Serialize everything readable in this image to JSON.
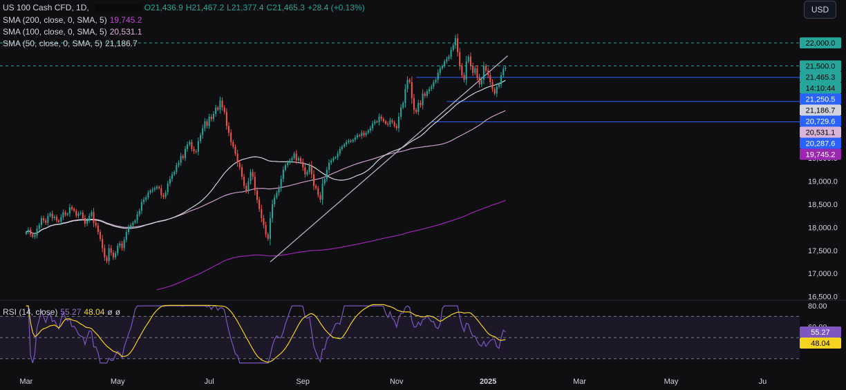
{
  "header": {
    "symbol": "US 100 Cash CFD, 1D,",
    "open": "O21,436.9",
    "high": "H21,467.2",
    "low": "L21,377.4",
    "close": "C21,465.3",
    "change": "+28.4 (+0.13%)"
  },
  "indicators": [
    {
      "label": "SMA (200, close, 0, SMA, 5)",
      "value": "19,745.2",
      "color": "#9c27b0"
    },
    {
      "label": "SMA (100, close, 0, SMA, 5)",
      "value": "20,531.1",
      "color": "#c99ec9"
    },
    {
      "label": "SMA (50, close, 0, SMA, 5)",
      "value": "21,186.7",
      "color": "#d1d4dc"
    }
  ],
  "currency_button": "USD",
  "rsi_legend": {
    "label": "RSI (14, close)",
    "rsi": "55.27",
    "ma": "48.04",
    "extra1": "ø",
    "extra2": "ø"
  },
  "colors": {
    "background": "#0f0f12",
    "up": "#26a69a",
    "down": "#ef5350",
    "sma200": "#9c27b0",
    "sma100": "#c99ec9",
    "sma50": "#d1d4dc",
    "level_line": "#2962ff",
    "rsi_line": "#7e57c2",
    "rsi_ma": "#f5d41f"
  },
  "price_labels": [
    {
      "text": "22,000.0",
      "bg": "#26a69a",
      "fg": "#000000"
    },
    {
      "text": "21,500.0",
      "bg": "#26a69a",
      "fg": "#000000"
    },
    {
      "text": "21,465.3",
      "bg": "#26a69a",
      "fg": "#000000"
    },
    {
      "text": "14:10:44",
      "bg": "#26a69a",
      "fg": "#000000"
    },
    {
      "text": "21,250.5",
      "bg": "#2962ff",
      "fg": "#ffffff"
    },
    {
      "text": "21,186.7",
      "bg": "#d1d4dc",
      "fg": "#000000"
    },
    {
      "text": "20,729.6",
      "bg": "#2962ff",
      "fg": "#ffffff"
    },
    {
      "text": "20,531.1",
      "bg": "#d8b4d8",
      "fg": "#000000"
    },
    {
      "text": "20,287.6",
      "bg": "#2962ff",
      "fg": "#ffffff"
    },
    {
      "text": "19,745.2",
      "bg": "#9c27b0",
      "fg": "#ffffff"
    }
  ],
  "rsi_labels": [
    {
      "text": "55.27",
      "bg": "#7e57c2",
      "fg": "#ffffff"
    },
    {
      "text": "48.04",
      "bg": "#f5d41f",
      "fg": "#000000"
    }
  ],
  "chart_data": {
    "type": "candlestick",
    "y_ticks": [
      16500,
      17000,
      17500,
      18000,
      18500,
      19000,
      19500
    ],
    "y_tick_labels": [
      "16,500.0",
      "17,000.0",
      "17,500.0",
      "18,000.0",
      "18,500.0",
      "19,000.0",
      "19,500.0"
    ],
    "ylim": [
      16450,
      22480
    ],
    "x_month_labels": [
      "Mar",
      "May",
      "Jul",
      "Sep",
      "Nov",
      "2025",
      "Mar",
      "May",
      "Ju"
    ],
    "x_month_label_index": [
      0,
      42,
      84,
      127,
      170,
      212,
      254,
      296,
      338
    ],
    "x_index_range": [
      -12,
      355
    ],
    "horizontal_levels": [
      {
        "value": 22000,
        "style": "dashed",
        "color": "#26a69a"
      },
      {
        "value": 21500,
        "style": "dashed",
        "color": "#26a69a"
      },
      {
        "value": 21250.5,
        "style": "solid",
        "color": "#2962ff",
        "from_index": 179
      },
      {
        "value": 20729.6,
        "style": "solid",
        "color": "#2962ff",
        "from_index": 193
      },
      {
        "value": 20287.6,
        "style": "solid",
        "color": "#2962ff",
        "from_index": 186
      }
    ],
    "trendlines": [
      {
        "from": [
          112,
          17250
        ],
        "to": [
          221,
          21720
        ],
        "color": "#b0b3bb"
      }
    ],
    "closes": [
      17900,
      17950,
      17850,
      17800,
      17830,
      17970,
      18050,
      18200,
      18150,
      18100,
      18250,
      18300,
      18200,
      18230,
      18150,
      18120,
      18220,
      18330,
      18270,
      18300,
      18440,
      18400,
      18360,
      18250,
      18300,
      18320,
      18200,
      18080,
      18150,
      18250,
      18330,
      18100,
      18040,
      17900,
      17750,
      17550,
      17350,
      17270,
      17550,
      17450,
      17350,
      17440,
      17600,
      17650,
      17550,
      17730,
      17900,
      18000,
      18050,
      18100,
      18150,
      18280,
      18360,
      18550,
      18600,
      18650,
      18750,
      18800,
      18820,
      18850,
      18880,
      18850,
      18700,
      18660,
      18760,
      18950,
      19050,
      19150,
      19200,
      19350,
      19400,
      19550,
      19500,
      19700,
      19800,
      19850,
      19700,
      19650,
      19640,
      19870,
      20000,
      20150,
      20300,
      20200,
      20400,
      20350,
      20460,
      20600,
      20550,
      20750,
      20600,
      20500,
      20200,
      20050,
      19850,
      19750,
      19600,
      19400,
      19300,
      19100,
      18900,
      18800,
      19000,
      19200,
      19100,
      18800,
      18600,
      18400,
      18200,
      18050,
      17850,
      17750,
      18200,
      18500,
      18650,
      18750,
      18850,
      19050,
      19250,
      19350,
      19400,
      19450,
      19500,
      19600,
      19450,
      19500,
      19420,
      19300,
      19150,
      19200,
      19350,
      19150,
      18900,
      18850,
      18700,
      18600,
      18950,
      19050,
      19250,
      19400,
      19450,
      19500,
      19520,
      19600,
      19700,
      19750,
      19800,
      19850,
      19880,
      19860,
      19900,
      19950,
      20000,
      19980,
      20050,
      20000,
      20050,
      20100,
      20150,
      20250,
      20300,
      20280,
      20400,
      20350,
      20300,
      20250,
      20230,
      20320,
      20280,
      20200,
      20150,
      20400,
      20600,
      20700,
      21000,
      21200,
      21150,
      20800,
      20550,
      20500,
      20700,
      20650,
      20900,
      20850,
      20950,
      21000,
      21050,
      21150,
      21200,
      21350,
      21450,
      21500,
      21600,
      21650,
      21700,
      21850,
      21950,
      22100,
      21800,
      21500,
      21300,
      21200,
      21600,
      21700,
      21500,
      21350,
      21450,
      21250,
      21100,
      21200,
      21500,
      21400,
      21300,
      21150,
      21000,
      20900,
      21050,
      21100,
      21300,
      21436.9,
      21465.3
    ],
    "sma50_last": 21186.7,
    "sma100_last": 20531.1,
    "sma200_last": 19745.2,
    "rsi": {
      "ylim": [
        22,
        82
      ],
      "ticks": [
        80,
        60
      ],
      "tick_labels": [
        "80.00",
        "60.00"
      ],
      "bands": [
        70,
        50,
        30
      ],
      "values_last": 55.27,
      "ma_last": 48.04
    }
  }
}
